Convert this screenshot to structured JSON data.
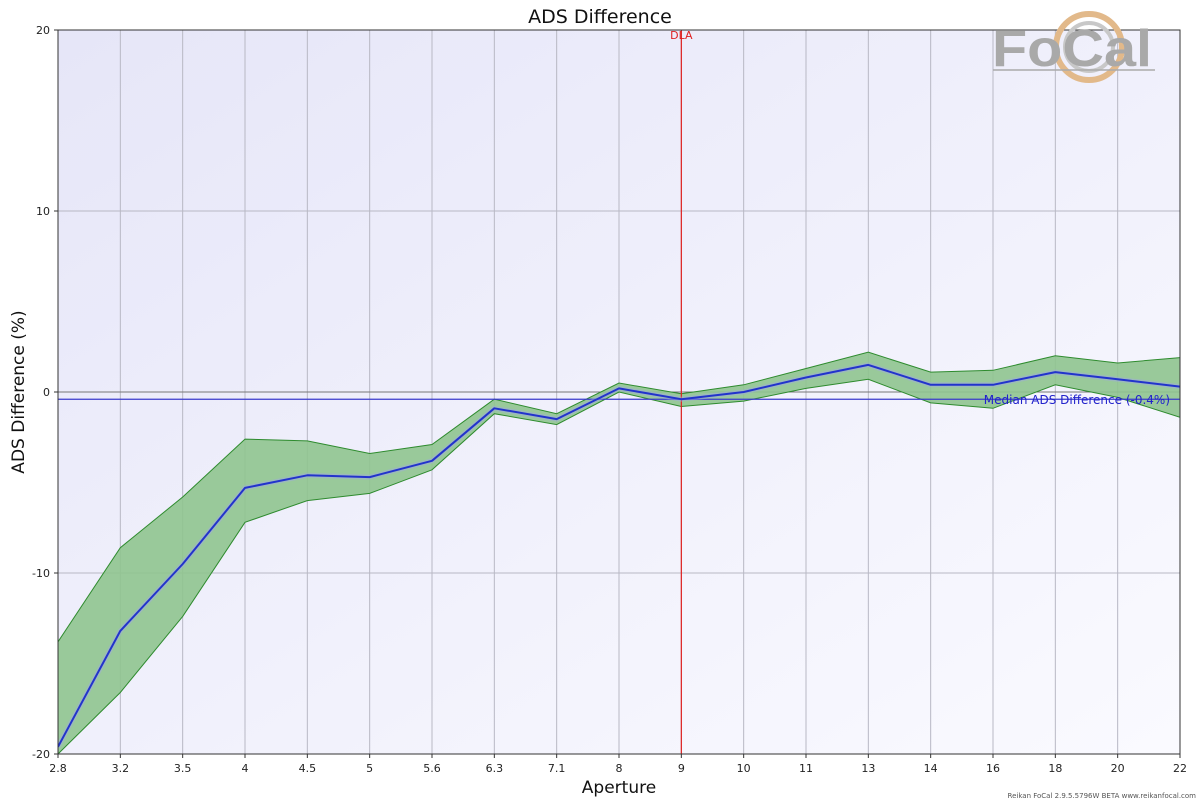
{
  "chart_data": {
    "type": "line",
    "title": "ADS Difference",
    "xlabel": "Aperture",
    "ylabel": "ADS Difference (%)",
    "ylim": [
      -20,
      20
    ],
    "yticks": [
      20,
      10,
      0,
      -10,
      -20
    ],
    "categories": [
      "2.8",
      "3.2",
      "3.5",
      "4",
      "4.5",
      "5",
      "5.6",
      "6.3",
      "7.1",
      "8",
      "9",
      "10",
      "11",
      "13",
      "14",
      "16",
      "18",
      "20",
      "22"
    ],
    "series": [
      {
        "values": [
          -19.6,
          -13.2,
          -9.5,
          -5.3,
          -4.6,
          -4.7,
          -3.8,
          -0.9,
          -1.5,
          0.2,
          -0.4,
          0.0,
          0.8,
          1.5,
          0.4,
          0.4,
          1.1,
          0.7,
          0.3
        ],
        "color": "#2233cc"
      }
    ],
    "band": {
      "upper": [
        -13.8,
        -8.6,
        -5.8,
        -2.6,
        -2.7,
        -3.4,
        -2.9,
        -0.4,
        -1.2,
        0.5,
        -0.1,
        0.4,
        1.3,
        2.2,
        1.1,
        1.2,
        2.0,
        1.6,
        1.9
      ],
      "lower": [
        -20.0,
        -16.6,
        -12.4,
        -7.2,
        -6.0,
        -5.6,
        -4.3,
        -1.2,
        -1.8,
        0.0,
        -0.8,
        -0.5,
        0.2,
        0.7,
        -0.6,
        -0.9,
        0.4,
        -0.3,
        -1.4
      ],
      "fill": "#8fc48f",
      "stroke": "#2e8b2e"
    },
    "reference_lines": {
      "zero": 0,
      "median": {
        "value": -0.4,
        "label": "Median ADS Difference (-0.4%)",
        "color": "#3a3acc"
      },
      "dla": {
        "category": "9",
        "label": "DLA",
        "color": "#e02020"
      }
    },
    "grid": true,
    "legend": "none"
  },
  "logo": {
    "text": "FoCal"
  },
  "footer": "Reikan FoCal 2.9.5.5796W BETA www.reikanfocal.com"
}
